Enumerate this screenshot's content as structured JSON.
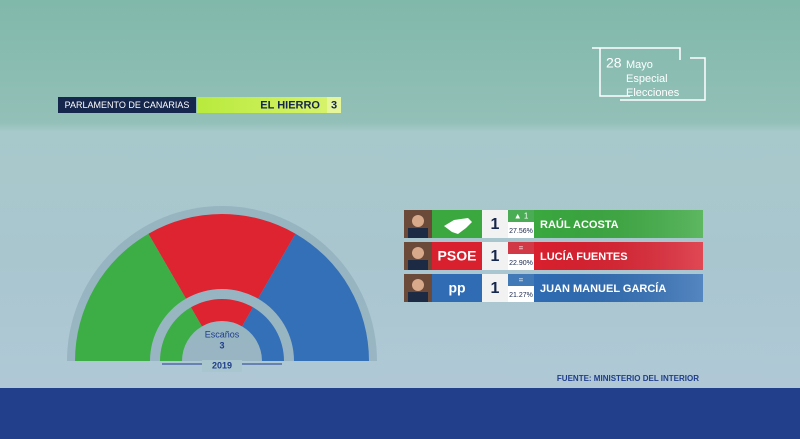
{
  "header": {
    "parliament": "PARLAMENTO DE CANARIAS",
    "island": "EL HIERRO",
    "seats": "3"
  },
  "logo": {
    "day": "28",
    "lines": [
      "Mayo",
      "Especial",
      "Elecciones"
    ]
  },
  "results": [
    {
      "logo_text": null,
      "seats": "1",
      "change": "▲ 1",
      "percent": "27.56%",
      "name": "RAÚL ACOSTA",
      "color": "#3aa83f"
    },
    {
      "logo_text": "PSOE",
      "seats": "1",
      "change": "=",
      "percent": "22.90%",
      "name": "LUCÍA FUENTES",
      "color": "#d9202f"
    },
    {
      "logo_text": "pp",
      "seats": "1",
      "change": "=",
      "percent": "21.27%",
      "name": "JUAN MANUEL GARCÍA",
      "color": "#2f6cb3"
    }
  ],
  "hemicycle": {
    "current": {
      "seats": [
        1,
        1,
        1
      ]
    },
    "previous": {
      "label": "Escaños",
      "total": "3",
      "year": "2019",
      "seats": [
        1,
        1,
        1
      ]
    },
    "colors": [
      "#3dae46",
      "#dd2430",
      "#3470b8"
    ]
  },
  "source": "FUENTE: MINISTERIO DEL INTERIOR"
}
